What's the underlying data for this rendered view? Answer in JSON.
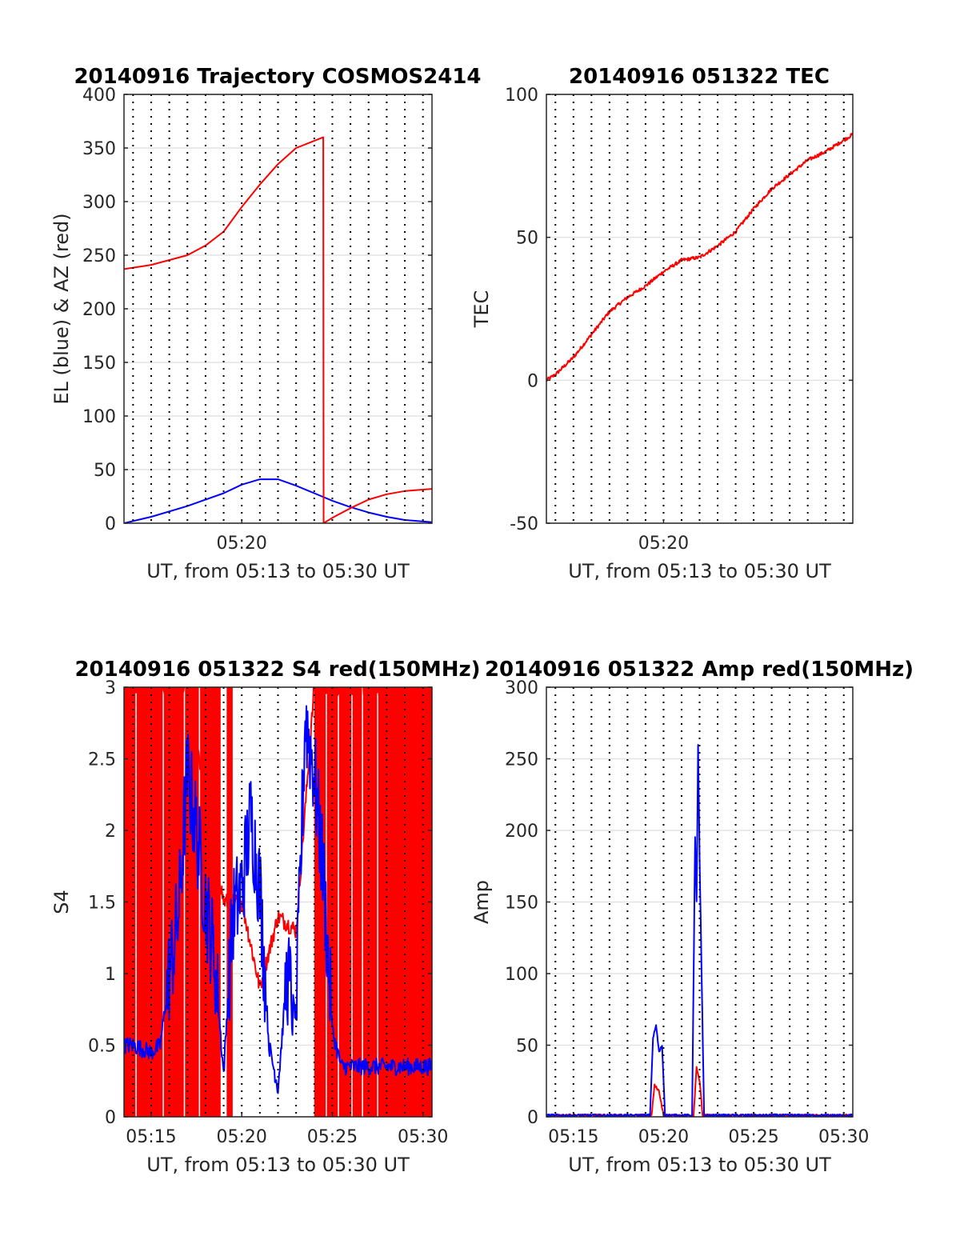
{
  "chart_data": [
    {
      "type": "line",
      "title": "20140916 Trajectory COSMOS2414",
      "xlabel": "UT, from 05:13 to 05:30 UT",
      "ylabel": "EL (blue) & AZ (red)",
      "xlim": [
        "05:13:30",
        "05:30:30"
      ],
      "ylim": [
        0,
        400
      ],
      "xticks": [
        "05:20"
      ],
      "yticks": [
        "0",
        "50",
        "100",
        "150",
        "200",
        "250",
        "300",
        "350",
        "400"
      ],
      "grid": "horizontal solid grid, vertical dotted lines every 1 min",
      "series": [
        {
          "color": "#0000ff",
          "x": [
            "05:13:30",
            "05:15:00",
            "05:17:00",
            "05:19:00",
            "05:20:00",
            "05:21:00",
            "05:22:00",
            "05:23:00",
            "05:24:00",
            "05:25:00",
            "05:26:00",
            "05:27:00",
            "05:28:00",
            "05:29:00",
            "05:30:30"
          ],
          "values": [
            0,
            6,
            16,
            28,
            36,
            41,
            41,
            35,
            28,
            21,
            15,
            10,
            6,
            3,
            1
          ]
        },
        {
          "color": "#ff0000",
          "x": [
            "05:13:30",
            "05:15:00",
            "05:17:00",
            "05:18:00",
            "05:19:00",
            "05:20:00",
            "05:21:00",
            "05:22:00",
            "05:23:00",
            "05:24:30",
            "05:24:31",
            "05:25:00",
            "05:26:00",
            "05:27:00",
            "05:28:00",
            "05:29:00",
            "05:30:30"
          ],
          "values": [
            237,
            241,
            250,
            259,
            272,
            295,
            316,
            335,
            350,
            360,
            0,
            5,
            14,
            22,
            27,
            30,
            32
          ]
        }
      ]
    },
    {
      "type": "line",
      "title": "20140916 051322 TEC",
      "xlabel": "UT, from 05:13 to 05:30 UT",
      "ylabel": "TEC",
      "xlim": [
        "05:13:30",
        "05:30:30"
      ],
      "ylim": [
        -50,
        100
      ],
      "xticks": [
        "05:20"
      ],
      "yticks": [
        "-50",
        "0",
        "50",
        "100"
      ],
      "series": [
        {
          "color": "#ff0000",
          "x": [
            "05:13:30",
            "05:14:00",
            "05:15:00",
            "05:16:00",
            "05:17:00",
            "05:18:00",
            "05:19:00",
            "05:20:00",
            "05:21:00",
            "05:22:00",
            "05:23:00",
            "05:24:00",
            "05:25:00",
            "05:26:00",
            "05:27:00",
            "05:28:00",
            "05:29:00",
            "05:30:30"
          ],
          "values": [
            0,
            2,
            8,
            16,
            24,
            29,
            33,
            38,
            42,
            43,
            47,
            52,
            60,
            67,
            72,
            77,
            80,
            86
          ]
        }
      ]
    },
    {
      "type": "line",
      "title": "20140916 051322 S4 red(150MHz)",
      "xlabel": "UT, from 05:13 to 05:30 UT",
      "ylabel": "S4",
      "xlim": [
        "05:13:30",
        "05:30:30"
      ],
      "ylim": [
        0,
        3
      ],
      "xticks": [
        "05:15",
        "05:20",
        "05:25",
        "05:30"
      ],
      "yticks": [
        "0",
        "0.5",
        "1",
        "1.5",
        "2",
        "2.5",
        "3"
      ],
      "series": [
        {
          "color": "#ff0000",
          "note_values": "dense saturated fill 0–3 across most of the range",
          "x": [
            "05:13:30",
            "05:17:00",
            "05:19:00",
            "05:20:00",
            "05:21:00",
            "05:22:00",
            "05:23:00",
            "05:24:00",
            "05:25:00",
            "05:30:30"
          ],
          "values": [
            3,
            3,
            1.5,
            1.5,
            0.9,
            1.4,
            1.3,
            3,
            3,
            3
          ]
        },
        {
          "color": "#0000ff",
          "x": [
            "05:13:30",
            "05:14:00",
            "05:15:00",
            "05:15:30",
            "05:16:00",
            "05:16:30",
            "05:17:00",
            "05:17:30",
            "05:18:00",
            "05:18:30",
            "05:19:00",
            "05:19:30",
            "05:20:00",
            "05:20:30",
            "05:21:00",
            "05:21:30",
            "05:22:00",
            "05:22:30",
            "05:23:00",
            "05:23:30",
            "05:24:00",
            "05:24:30",
            "05:25:00",
            "05:25:30",
            "05:26:00",
            "05:27:00",
            "05:28:00",
            "05:29:00",
            "05:30:30"
          ],
          "values": [
            0.5,
            0.5,
            0.45,
            0.5,
            1.0,
            1.4,
            2.4,
            2.0,
            1.5,
            1.1,
            0.3,
            1.4,
            1.6,
            2.1,
            1.6,
            0.5,
            0.2,
            1.0,
            0.7,
            2.8,
            2.4,
            1.7,
            0.6,
            0.35,
            0.35,
            0.35,
            0.35,
            0.35,
            0.35
          ]
        }
      ]
    },
    {
      "type": "line",
      "title": "20140916 051322 Amp red(150MHz)",
      "xlabel": "UT, from 05:13 to 05:30 UT",
      "ylabel": "Amp",
      "xlim": [
        "05:13:30",
        "05:30:30"
      ],
      "ylim": [
        0,
        300
      ],
      "xticks": [
        "05:15",
        "05:20",
        "05:25",
        "05:30"
      ],
      "yticks": [
        "0",
        "50",
        "100",
        "150",
        "200",
        "250",
        "300"
      ],
      "series": [
        {
          "color": "#ff0000",
          "x": [
            "05:13:30",
            "05:19:20",
            "05:19:30",
            "05:19:45",
            "05:20:00",
            "05:21:40",
            "05:21:50",
            "05:22:00",
            "05:22:10",
            "05:30:30"
          ],
          "values": [
            1,
            1,
            22,
            18,
            1,
            1,
            35,
            25,
            1,
            1
          ]
        },
        {
          "color": "#0000ff",
          "x": [
            "05:13:30",
            "05:19:15",
            "05:19:25",
            "05:19:35",
            "05:19:45",
            "05:19:55",
            "05:20:05",
            "05:21:35",
            "05:21:45",
            "05:21:50",
            "05:21:55",
            "05:22:00",
            "05:22:05",
            "05:22:15",
            "05:30:30"
          ],
          "values": [
            1,
            1,
            55,
            64,
            45,
            50,
            1,
            1,
            195,
            150,
            260,
            180,
            120,
            1,
            1
          ]
        }
      ]
    }
  ]
}
